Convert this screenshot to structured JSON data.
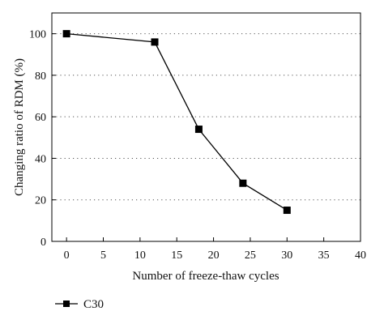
{
  "chart_data": {
    "type": "line",
    "title": "",
    "xlabel": "Number of freeze-thaw cycles",
    "ylabel": "Changing ratio of RDM (%)",
    "xlim": [
      -2,
      40
    ],
    "ylim": [
      0,
      110
    ],
    "xticks": [
      0,
      5,
      10,
      15,
      20,
      25,
      30,
      35,
      40
    ],
    "yticks": [
      0,
      20,
      40,
      60,
      80,
      100
    ],
    "grid": "horizontal-dotted",
    "legend_position": "bottom-left",
    "series": [
      {
        "name": "C30",
        "marker": "square",
        "color": "#000000",
        "x": [
          0,
          12,
          18,
          24,
          30
        ],
        "y": [
          100,
          96,
          54,
          28,
          15
        ]
      }
    ]
  }
}
